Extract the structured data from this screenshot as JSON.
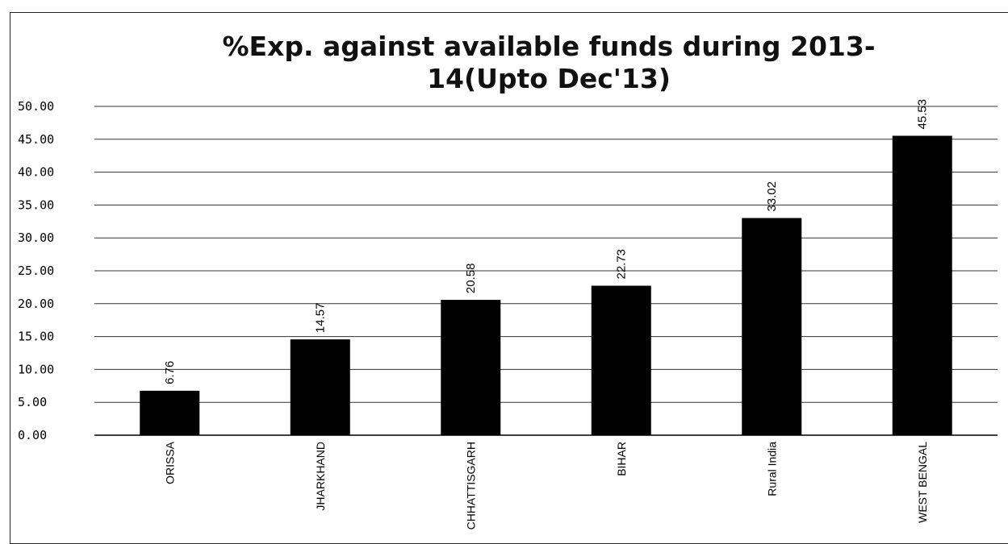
{
  "chart_data": {
    "type": "bar",
    "title": "%Exp. against available funds during 2013-14(Upto Dec'13)",
    "categories": [
      "ORISSA",
      "JHARKHAND",
      "CHHATTISGARH",
      "BIHAR",
      "Rural India",
      "WEST BENGAL"
    ],
    "values": [
      6.76,
      14.57,
      20.58,
      22.73,
      33.02,
      45.53
    ],
    "color": "#000000",
    "ylim": [
      0,
      50
    ],
    "yticks": [
      {
        "value": 0,
        "label": "0.00"
      },
      {
        "value": 5,
        "label": "5.00"
      },
      {
        "value": 10,
        "label": "10.00"
      },
      {
        "value": 15,
        "label": "15.00"
      },
      {
        "value": 20,
        "label": "20.00"
      },
      {
        "value": 25,
        "label": "25.00"
      },
      {
        "value": 30,
        "label": "30.00"
      },
      {
        "value": 35,
        "label": "35.00"
      },
      {
        "value": 40,
        "label": "40.00"
      },
      {
        "value": 45,
        "label": "45.00"
      },
      {
        "value": 50,
        "label": "50.00"
      }
    ],
    "grid": true
  }
}
